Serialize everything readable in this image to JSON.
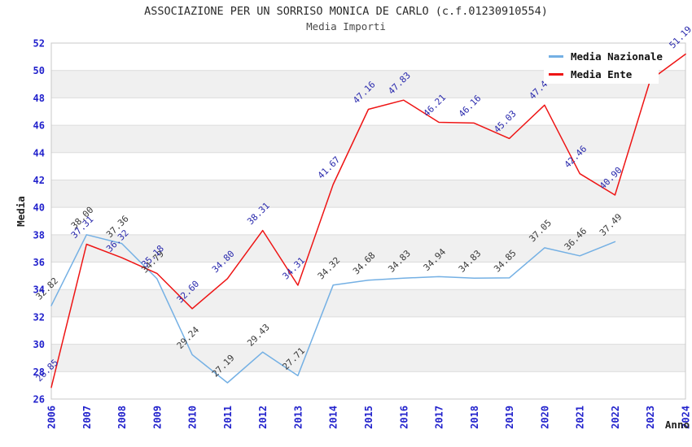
{
  "header": {
    "title": "ASSOCIAZIONE PER UN SORRISO MONICA DE CARLO (c.f.01230910554)",
    "subtitle": "Media Importi"
  },
  "chart_data": {
    "type": "line",
    "title": "ASSOCIAZIONE PER UN SORRISO MONICA DE CARLO (c.f.01230910554)",
    "subtitle": "Media Importi",
    "xlabel": "Anno",
    "ylabel": "Media",
    "ylim": [
      26,
      52
    ],
    "ytick_step": 2,
    "x_ticks": [
      2006,
      2007,
      2008,
      2009,
      2010,
      2011,
      2012,
      2013,
      2014,
      2015,
      2016,
      2017,
      2018,
      2019,
      2020,
      2021,
      2022,
      2023,
      2024
    ],
    "grid": "horizontal",
    "background_bands": true,
    "legend": {
      "position": "top-right",
      "entries": [
        {
          "label": "Media Nazionale",
          "color": "#74b0e4"
        },
        {
          "label": "Media Ente",
          "color": "#ee1414"
        }
      ]
    },
    "series": [
      {
        "name": "Media Nazionale",
        "color": "#74b0e4",
        "label_color": "#3a3a3a",
        "x": [
          2006,
          2007,
          2008,
          2009,
          2010,
          2011,
          2012,
          2013,
          2014,
          2015,
          2016,
          2017,
          2018,
          2019,
          2020,
          2021,
          2022
        ],
        "values": [
          32.82,
          38.0,
          37.36,
          34.79,
          29.24,
          27.19,
          29.43,
          27.71,
          34.32,
          34.68,
          34.83,
          34.94,
          34.83,
          34.85,
          37.05,
          36.46,
          37.49
        ]
      },
      {
        "name": "Media Ente",
        "color": "#ee1414",
        "label_color": "#2a2aad",
        "x": [
          2006,
          2007,
          2008,
          2009,
          2010,
          2011,
          2012,
          2013,
          2014,
          2015,
          2016,
          2017,
          2018,
          2019,
          2020,
          2021,
          2022,
          2023,
          2024
        ],
        "values": [
          26.85,
          37.31,
          36.32,
          35.18,
          32.6,
          34.8,
          38.31,
          34.31,
          41.67,
          47.16,
          47.83,
          46.21,
          46.16,
          45.03,
          47.47,
          42.46,
          40.9,
          49.3,
          51.19
        ],
        "hidden_label_years": [
          2023
        ]
      }
    ],
    "colors": {
      "band_gray": "#f0f0f0",
      "gridline": "#dcdcdc",
      "plot_border": "#c8c8c8",
      "tick_text": "#2222cc",
      "title_text": "#2b2b2b",
      "subtitle_text": "#4a4a4a"
    }
  }
}
